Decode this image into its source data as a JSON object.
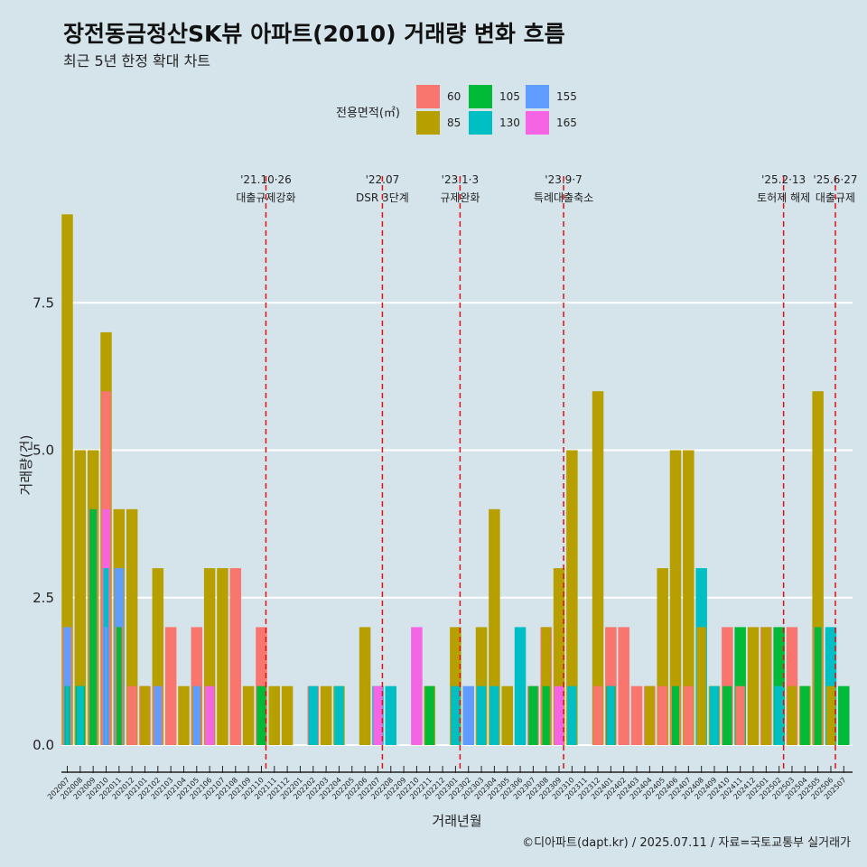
{
  "title": "장전동금정산SK뷰 아파트(2010) 거래량 변화 흐름",
  "subtitle": "최근 5년 한정 확대 차트",
  "legend_title": "전용면적(㎡)",
  "caption": "©디아파트(dapt.kr) / 2025.07.11 / 자료=국토교통부 실거래가",
  "chart_data": {
    "type": "bar",
    "xlabel": "거래년월",
    "ylabel": "거래량(건)",
    "ylim": [
      -0.3,
      9.0
    ],
    "yticks": [
      0.0,
      2.5,
      5.0,
      7.5
    ],
    "ytick_labels": [
      "0.0",
      "2.5",
      "5.0",
      "7.5"
    ],
    "grid": true,
    "legend_position": "top",
    "series_colors": {
      "60": "#f8766d",
      "85": "#b79f00",
      "105": "#00ba38",
      "130": "#00bfc4",
      "155": "#619cff",
      "165": "#f564e3"
    },
    "legend_order": [
      "60",
      "85",
      "105",
      "130",
      "155",
      "165"
    ],
    "months": [
      "202007",
      "202008",
      "202009",
      "202010",
      "202011",
      "202012",
      "202101",
      "202102",
      "202103",
      "202104",
      "202105",
      "202106",
      "202107",
      "202108",
      "202109",
      "202110",
      "202111",
      "202112",
      "202201",
      "202202",
      "202203",
      "202204",
      "202205",
      "202206",
      "202207",
      "202208",
      "202209",
      "202210",
      "202211",
      "202212",
      "202301",
      "202302",
      "202303",
      "202304",
      "202305",
      "202306",
      "202307",
      "202308",
      "202309",
      "202310",
      "202311",
      "202312",
      "202401",
      "202402",
      "202403",
      "202404",
      "202405",
      "202406",
      "202407",
      "202408",
      "202409",
      "202410",
      "202411",
      "202412",
      "202501",
      "202502",
      "202503",
      "202504",
      "202505",
      "202506",
      "202507"
    ],
    "tick_labels": [
      "202007",
      "202008",
      "202009",
      "202010",
      "202011",
      "202012",
      "202101",
      "202102",
      "202103",
      "202104",
      "202105",
      "202106",
      "202107",
      "202108",
      "202109",
      "202110",
      "202111",
      "202112",
      "202201",
      "202202",
      "202203",
      "202204",
      "202205",
      "202206",
      "202207",
      "202208",
      "202209",
      "202210",
      "202211",
      "202212",
      "202301",
      "202302",
      "202303",
      "202304",
      "202305",
      "202306",
      "202307",
      "202308",
      "202309",
      "202310",
      "202311",
      "202312",
      "202401",
      "202402",
      "202403",
      "202404",
      "202405",
      "202406",
      "202407",
      "202408",
      "202409",
      "202410",
      "202411",
      "202412",
      "202501",
      "202502",
      "202503",
      "202504",
      "202505",
      "202506",
      "202507"
    ],
    "bars": [
      {
        "month": "202007",
        "values": {
          "60": 2,
          "85": 9,
          "105": 1,
          "130": 1,
          "155": 2
        }
      },
      {
        "month": "202008",
        "values": {
          "85": 5,
          "105": 1,
          "130": 1
        }
      },
      {
        "month": "202009",
        "values": {
          "85": 5,
          "105": 4,
          "60": 4
        }
      },
      {
        "month": "202010",
        "values": {
          "60": 6,
          "85": 7,
          "130": 3,
          "155": 2,
          "165": 4
        }
      },
      {
        "month": "202011",
        "values": {
          "60": 2,
          "85": 4,
          "105": 2,
          "155": 3
        }
      },
      {
        "month": "202012",
        "values": {
          "60": 1,
          "85": 4
        }
      },
      {
        "month": "202101",
        "values": {
          "60": 1,
          "85": 1
        }
      },
      {
        "month": "202102",
        "values": {
          "60": 1,
          "85": 3,
          "155": 1
        }
      },
      {
        "month": "202103",
        "values": {
          "60": 2
        }
      },
      {
        "month": "202104",
        "values": {
          "85": 1
        }
      },
      {
        "month": "202105",
        "values": {
          "60": 2,
          "85": 1,
          "155": 1
        }
      },
      {
        "month": "202106",
        "values": {
          "85": 3,
          "165": 1
        }
      },
      {
        "month": "202107",
        "values": {
          "85": 3
        }
      },
      {
        "month": "202108",
        "values": {
          "60": 3
        }
      },
      {
        "month": "202109",
        "values": {
          "85": 1
        }
      },
      {
        "month": "202110",
        "values": {
          "60": 2,
          "105": 1
        }
      },
      {
        "month": "202111",
        "values": {
          "85": 1
        }
      },
      {
        "month": "202112",
        "values": {
          "85": 1
        }
      },
      {
        "month": "202202",
        "values": {
          "60": 1,
          "130": 1
        }
      },
      {
        "month": "202203",
        "values": {
          "85": 1
        }
      },
      {
        "month": "202204",
        "values": {
          "85": 1,
          "130": 1
        }
      },
      {
        "month": "202206",
        "values": {
          "85": 2
        }
      },
      {
        "month": "202207",
        "values": {
          "130": 1,
          "165": 1
        }
      },
      {
        "month": "202208",
        "values": {
          "130": 1
        }
      },
      {
        "month": "202210",
        "values": {
          "165": 2
        }
      },
      {
        "month": "202211",
        "values": {
          "85": 1,
          "105": 1
        }
      },
      {
        "month": "202301",
        "values": {
          "85": 2,
          "130": 1
        }
      },
      {
        "month": "202302",
        "values": {
          "155": 1
        }
      },
      {
        "month": "202303",
        "values": {
          "85": 2,
          "130": 1
        }
      },
      {
        "month": "202304",
        "values": {
          "85": 4,
          "130": 1
        }
      },
      {
        "month": "202305",
        "values": {
          "85": 1
        }
      },
      {
        "month": "202306",
        "values": {
          "130": 2
        }
      },
      {
        "month": "202307",
        "values": {
          "60": 1,
          "105": 1
        }
      },
      {
        "month": "202308",
        "values": {
          "60": 2,
          "85": 2,
          "105": 1
        }
      },
      {
        "month": "202309",
        "values": {
          "85": 3,
          "165": 1
        }
      },
      {
        "month": "202310",
        "values": {
          "85": 5,
          "130": 1
        }
      },
      {
        "month": "202312",
        "values": {
          "60": 1,
          "85": 6
        }
      },
      {
        "month": "202401",
        "values": {
          "60": 2,
          "105": 1,
          "130": 1
        }
      },
      {
        "month": "202402",
        "values": {
          "60": 2
        }
      },
      {
        "month": "202403",
        "values": {
          "60": 1
        }
      },
      {
        "month": "202404",
        "values": {
          "85": 1,
          "60": 1
        }
      },
      {
        "month": "202405",
        "values": {
          "60": 1,
          "85": 3
        }
      },
      {
        "month": "202406",
        "values": {
          "85": 5,
          "105": 1,
          "60": 1
        }
      },
      {
        "month": "202407",
        "values": {
          "60": 1,
          "85": 5
        }
      },
      {
        "month": "202408",
        "values": {
          "85": 2,
          "130": 3
        }
      },
      {
        "month": "202409",
        "values": {
          "85": 1,
          "130": 1
        }
      },
      {
        "month": "202410",
        "values": {
          "60": 2,
          "105": 1
        }
      },
      {
        "month": "202411",
        "values": {
          "60": 1,
          "105": 2
        }
      },
      {
        "month": "202412",
        "values": {
          "85": 2
        }
      },
      {
        "month": "202501",
        "values": {
          "60": 2,
          "85": 2
        }
      },
      {
        "month": "202502",
        "values": {
          "130": 1,
          "105": 2
        }
      },
      {
        "month": "202503",
        "values": {
          "60": 2,
          "85": 1
        }
      },
      {
        "month": "202504",
        "values": {
          "85": 1,
          "105": 1
        }
      },
      {
        "month": "202505",
        "values": {
          "60": 2,
          "85": 6,
          "105": 2
        }
      },
      {
        "month": "202506",
        "values": {
          "85": 1,
          "130": 2
        }
      },
      {
        "month": "202507",
        "values": {
          "105": 1
        }
      }
    ],
    "annotations": [
      {
        "month": "202110",
        "line1": "'21.10·26",
        "line2": "대출규제강화"
      },
      {
        "month": "202207",
        "line1": "'22.07",
        "line2": "DSR 3단계"
      },
      {
        "month": "202301",
        "line1": "'23.1·3",
        "line2": "규제완화"
      },
      {
        "month": "202309",
        "line1": "'23.9·7",
        "line2": "특례대출축소"
      },
      {
        "month": "202502",
        "line1": "'25.2·13",
        "line2": "토허제 해제"
      },
      {
        "month": "202506",
        "line1": "'25.6·27",
        "line2": "대출규제"
      }
    ]
  }
}
